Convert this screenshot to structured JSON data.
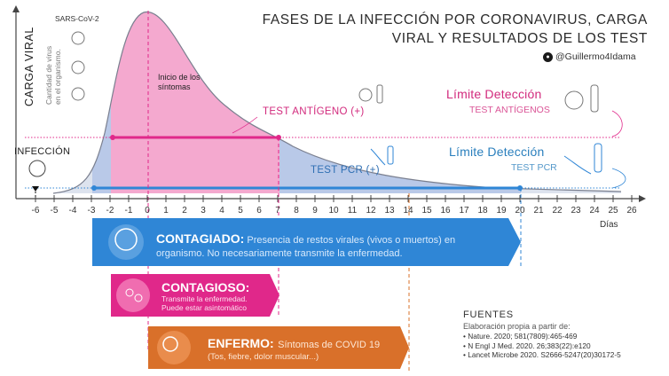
{
  "title_lines": [
    "FASES DE LA INFECCIÓN POR CORONAVIRUS, CARGA",
    "VIRAL Y RESULTADOS DE LOS TEST"
  ],
  "twitter_handle": "@Guillermo4Idama",
  "y_axis": {
    "title": "CARGA VIRAL",
    "subtitle_lines": [
      "Cantidad de virus",
      "en el organismo."
    ]
  },
  "virus_label": "SARS-CoV-2",
  "infection_label": "INFECCIÓN",
  "symptom_onset_label": "Inicio de los síntomas",
  "test_antigen_label": "TEST ANTÍGENO (+)",
  "test_pcr_label": "TEST PCR (+)",
  "limit_antigen": {
    "title": "Límite Detección",
    "subtitle": "TEST ANTÍGENOS"
  },
  "limit_pcr": {
    "title": "Límite Detección",
    "subtitle": "TEST PCR"
  },
  "x_axis": {
    "unit_label": "Días",
    "ticks": [
      "-6",
      "-5",
      "-4",
      "-3",
      "-2",
      "-1",
      "0",
      "1",
      "2",
      "3",
      "4",
      "5",
      "6",
      "7",
      "8",
      "9",
      "10",
      "11",
      "12",
      "13",
      "14",
      "15",
      "16",
      "17",
      "18",
      "19",
      "20",
      "21",
      "22",
      "23",
      "24",
      "25",
      "26"
    ]
  },
  "phases": {
    "contagiado": {
      "title": "CONTAGIADO:",
      "description": "Presencia de restos virales (vivos o muertos) en organismo. No necesariamente transmite la enfermedad.",
      "start_day": -3,
      "end_day": 20,
      "color": "#2f86d6"
    },
    "contagioso": {
      "title": "CONTAGIOSO:",
      "description_lines": [
        "Transmite la enfermedad.",
        "Puede estar asintomático"
      ],
      "start_day": -2,
      "end_day": 7,
      "color": "#e0288a"
    },
    "enfermo": {
      "title": "ENFERMO:",
      "description_lines": [
        "Síntomas de COVID 19",
        "(Tos, fiebre, dolor muscular...)"
      ],
      "start_day": 0,
      "end_day": 14,
      "color": "#d9702a"
    }
  },
  "detection_windows": {
    "antigen": [
      -2,
      7
    ],
    "pcr": [
      -3,
      20
    ],
    "infection_day": -6,
    "symptom_onset_day": 0
  },
  "sources": {
    "heading": "FUENTES",
    "subheading": "Elaboración propia a partir de:",
    "items": [
      "Nature. 2020; 581(7809):465-469",
      "N Engl J Med. 2020. 26;383(22):e120",
      "Lancet Microbe 2020. S2666-5247(20)30172-5"
    ]
  },
  "colors": {
    "antigen": "#e0288a",
    "pcr": "#2f86d6",
    "symptom": "#d9702a",
    "curve_fill_pink": "#f4a9cf",
    "curve_fill_blue": "#c7d4ec"
  }
}
